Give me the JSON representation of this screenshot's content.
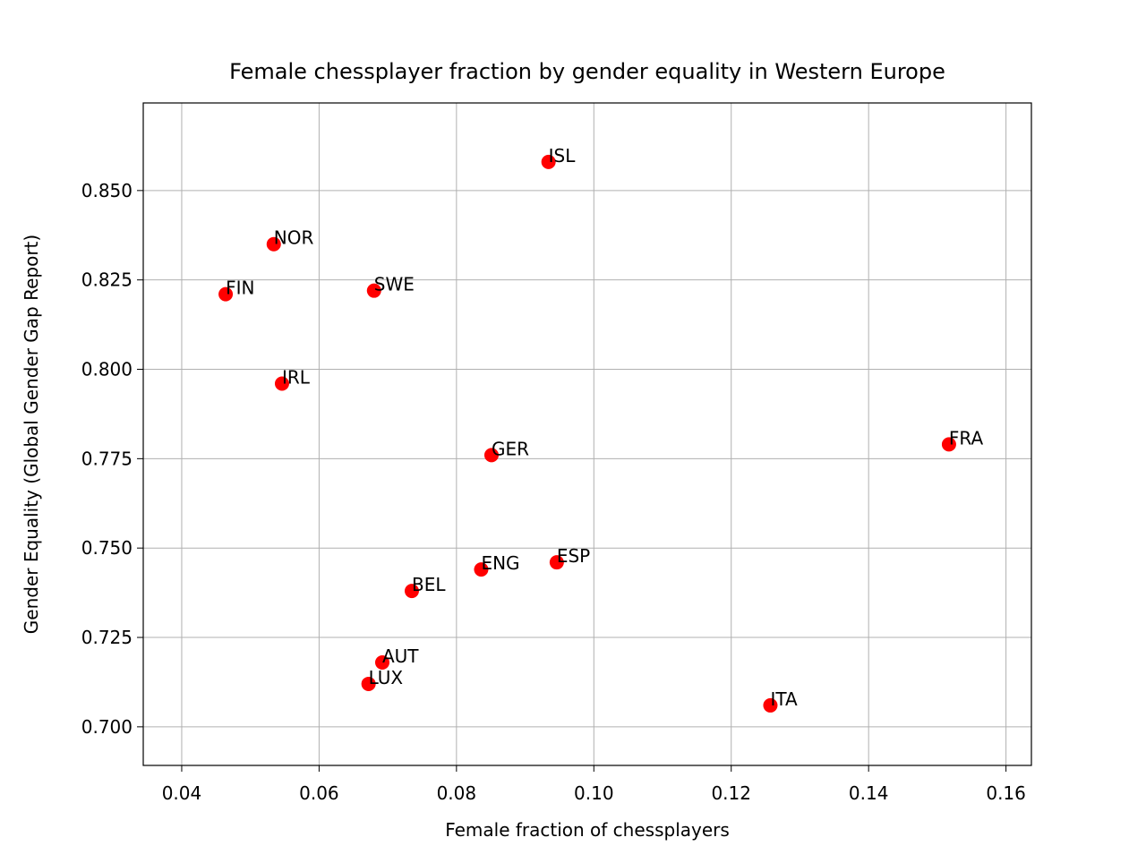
{
  "chart_data": {
    "type": "scatter",
    "title": "Female chessplayer fraction by gender equality in Western Europe",
    "x_label": "Female fraction of chessplayers",
    "y_label": "Gender Equality (Global Gender Gap Report)",
    "labels": [
      "ISL",
      "NOR",
      "FIN",
      "SWE",
      "IRL",
      "GER",
      "FRA",
      "ESP",
      "ENG",
      "BEL",
      "AUT",
      "LUX",
      "ITA"
    ],
    "x": [
      0.0934,
      0.0534,
      0.0464,
      0.068,
      0.0546,
      0.0851,
      0.1517,
      0.0946,
      0.0836,
      0.0735,
      0.0692,
      0.0672,
      0.1257
    ],
    "values": [
      0.858,
      0.835,
      0.821,
      0.822,
      0.796,
      0.776,
      0.779,
      0.746,
      0.744,
      0.738,
      0.718,
      0.712,
      0.706
    ],
    "color": "red",
    "xlim": [
      0.0344,
      0.1637
    ],
    "ylim": [
      0.6892,
      0.8745
    ],
    "xticks": [
      0.04,
      0.06,
      0.08,
      {
        "value": 0.1,
        "label": "0.10"
      },
      0.12,
      0.14,
      0.16
    ],
    "yticks": [
      {
        "value": 0.7,
        "label": "0.700"
      },
      0.725,
      {
        "value": 0.75,
        "label": "0.750"
      },
      0.775,
      {
        "value": 0.8,
        "label": "0.800"
      },
      0.825,
      {
        "value": 0.85,
        "label": "0.850"
      }
    ],
    "grid": true
  }
}
